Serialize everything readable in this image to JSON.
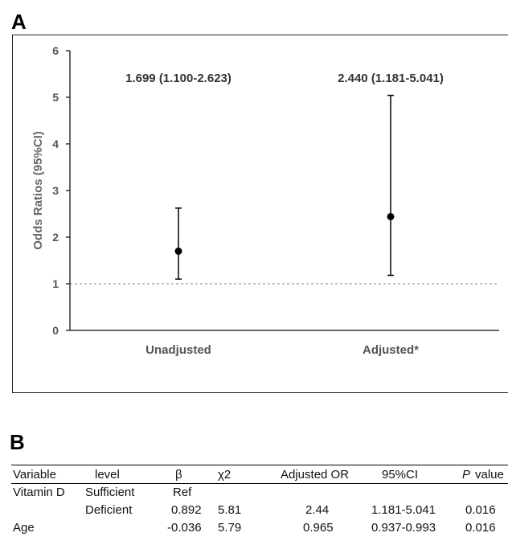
{
  "panel_a_label": "A",
  "panel_b_label": "B",
  "chart_data": {
    "type": "scatter",
    "subtype": "odds-ratio-with-error-bars",
    "ylabel": "Odds Ratios (95%CI)",
    "xlabel": "",
    "ylim": [
      0,
      6
    ],
    "yticks": [
      0,
      1,
      2,
      3,
      4,
      5,
      6
    ],
    "reference_line": 1,
    "categories": [
      "Unadjusted",
      "Adjusted*"
    ],
    "points": [
      {
        "category": "Unadjusted",
        "or": 1.699,
        "lower": 1.1,
        "upper": 2.623,
        "label": "1.699 (1.100-2.623)"
      },
      {
        "category": "Adjusted*",
        "or": 2.44,
        "lower": 1.181,
        "upper": 5.041,
        "label": "2.440 (1.181-5.041)"
      }
    ],
    "grid": false,
    "colors": {
      "point": "#000000",
      "reference_line": "#6a8ea0",
      "axis": "#333333"
    }
  },
  "table": {
    "headers": [
      "Variable",
      "level",
      "β",
      "χ2",
      "Adjusted OR",
      "95%CI",
      "P",
      "value"
    ],
    "rows": [
      [
        "Vitamin D",
        "Sufficient",
        "Ref",
        "",
        "",
        "",
        "",
        ""
      ],
      [
        "",
        "Deficient",
        "0.892",
        "5.81",
        "2.44",
        "1.181-5.041",
        "0.016",
        ""
      ],
      [
        "Age",
        "",
        "-0.036",
        "5.79",
        "0.965",
        "0.937-0.993",
        "0.016",
        ""
      ]
    ]
  }
}
